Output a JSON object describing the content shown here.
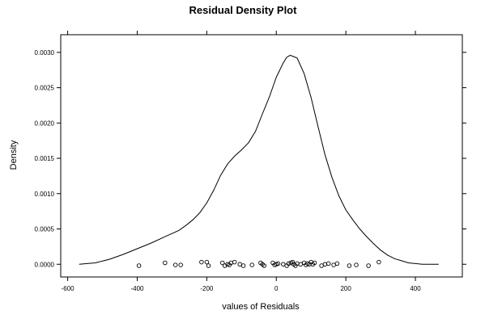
{
  "chart_data": {
    "type": "line",
    "title": "Residual Density Plot",
    "xlabel": "values of Residuals",
    "ylabel": "Density",
    "xlim": [
      -620,
      535
    ],
    "ylim": [
      -0.00018,
      0.00325
    ],
    "xticks": [
      -600,
      -400,
      -200,
      0,
      200,
      400
    ],
    "xtick_labels": [
      "-600",
      "-400",
      "-200",
      "0",
      "200",
      "400"
    ],
    "yticks": [
      0.0,
      0.0005,
      0.001,
      0.0015,
      0.002,
      0.0025,
      0.003
    ],
    "ytick_labels": [
      "0.0000",
      "0.0005",
      "0.0010",
      "0.0015",
      "0.0020",
      "0.0025",
      "0.0030"
    ],
    "grid": false,
    "colors": {
      "line": "#000000",
      "frame": "#000000",
      "background": "#ffffff"
    },
    "series": [
      {
        "type": "line",
        "x": [
          -567,
          -520,
          -480,
          -440,
          -400,
          -360,
          -320,
          -280,
          -260,
          -240,
          -220,
          -200,
          -180,
          -160,
          -140,
          -120,
          -100,
          -80,
          -60,
          -40,
          -20,
          0,
          20,
          30,
          40,
          50,
          60,
          80,
          100,
          120,
          140,
          160,
          180,
          200,
          220,
          240,
          260,
          280,
          300,
          320,
          340,
          360,
          380,
          400,
          420,
          440,
          467
        ],
        "y": [
          0.0,
          2e-05,
          7e-05,
          0.00014,
          0.00022,
          0.0003,
          0.00039,
          0.00048,
          0.00055,
          0.00063,
          0.00073,
          0.00087,
          0.00105,
          0.00126,
          0.00142,
          0.00153,
          0.00162,
          0.00172,
          0.00188,
          0.00213,
          0.00237,
          0.00265,
          0.00285,
          0.00293,
          0.00296,
          0.00294,
          0.00292,
          0.0027,
          0.00236,
          0.00195,
          0.00155,
          0.00123,
          0.00097,
          0.00077,
          0.00063,
          0.0005,
          0.00039,
          0.00029,
          0.0002,
          0.00013,
          8e-05,
          5e-05,
          2e-05,
          1e-05,
          0.0,
          0.0,
          0.0
        ]
      },
      {
        "type": "scatter",
        "marker": "open-circle",
        "x": [
          -395,
          -320,
          -290,
          -275,
          -215,
          -200,
          -195,
          -155,
          -148,
          -140,
          -135,
          -130,
          -120,
          -105,
          -95,
          -70,
          -45,
          -40,
          -35,
          -10,
          -5,
          0,
          5,
          20,
          30,
          35,
          42,
          47,
          50,
          55,
          60,
          70,
          80,
          85,
          90,
          95,
          100,
          105,
          110,
          130,
          140,
          150,
          165,
          175,
          210,
          230,
          265,
          295
        ],
        "y": [
          -2e-05,
          2e-05,
          -1e-05,
          -1e-05,
          3e-05,
          3e-05,
          -2e-05,
          2e-05,
          -2e-05,
          0.0,
          -1e-05,
          2e-05,
          3e-05,
          0.0,
          -2e-05,
          -1e-05,
          2e-05,
          0.0,
          -2e-05,
          2e-05,
          -1e-05,
          0.0,
          1e-05,
          0.0,
          -2e-05,
          1e-05,
          2e-05,
          3e-05,
          0.0,
          -2e-05,
          1e-05,
          0.0,
          2e-05,
          -1e-05,
          1e-05,
          0.0,
          3e-05,
          0.0,
          2e-05,
          -2e-05,
          0.0,
          1e-05,
          -1e-05,
          1e-05,
          -2e-05,
          -1e-05,
          -2e-05,
          3e-05
        ]
      }
    ]
  }
}
